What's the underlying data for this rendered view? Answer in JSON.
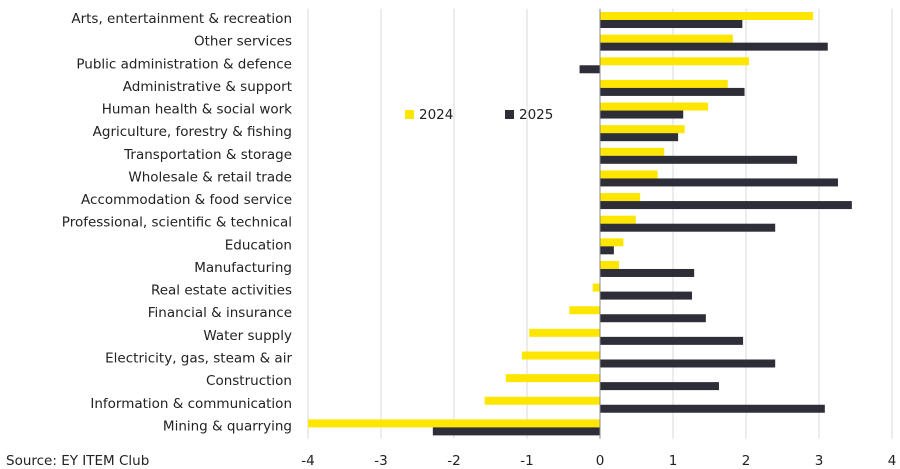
{
  "chart_data": {
    "type": "hbar",
    "source": "Source: EY ITEM Club",
    "categories": [
      "Arts, entertainment & recreation",
      "Other services",
      "Public administration & defence",
      "Administrative & support",
      "Human health & social work",
      "Agriculture, forestry & fishing",
      "Transportation & storage",
      "Wholesale & retail trade",
      "Accommodation & food service",
      "Professional, scientific & technical",
      "Education",
      "Manufacturing",
      "Real estate activities",
      "Financial & insurance",
      "Water supply",
      "Electricity, gas, steam & air",
      "Construction",
      "Information & communication",
      "Mining & quarrying"
    ],
    "series": [
      {
        "name": "2024",
        "color": "#ffe600",
        "values": [
          2.92,
          1.82,
          2.04,
          1.75,
          1.48,
          1.16,
          0.88,
          0.79,
          0.55,
          0.49,
          0.32,
          0.26,
          -0.1,
          -0.42,
          -0.97,
          -1.07,
          -1.29,
          -1.58,
          -4.0
        ]
      },
      {
        "name": "2025",
        "color": "#2e2e38",
        "values": [
          1.95,
          3.12,
          -0.28,
          1.98,
          1.14,
          1.07,
          2.7,
          3.26,
          3.45,
          2.4,
          0.19,
          1.29,
          1.26,
          1.45,
          1.96,
          2.4,
          1.63,
          3.08,
          -2.29
        ]
      }
    ],
    "xlim": [
      -4,
      4
    ],
    "xticks": [
      -4,
      -3,
      -2,
      -1,
      0,
      1,
      2,
      3,
      4
    ],
    "grid": true
  }
}
